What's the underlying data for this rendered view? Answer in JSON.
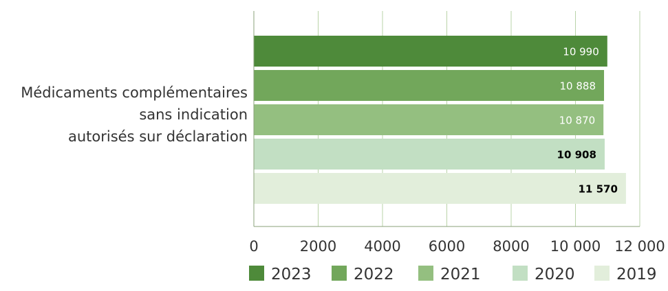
{
  "chart_data": {
    "type": "bar",
    "orientation": "horizontal",
    "categories": [
      "Médicaments complémentaires sans indication autorisés sur déclaration"
    ],
    "category_label_lines": [
      "Médicaments complémentaires",
      "sans indication",
      "autorisés sur déclaration"
    ],
    "series": [
      {
        "name": "2023",
        "values": [
          10990
        ],
        "value_label": "10 990",
        "color": "#4e8a3a",
        "label_color": "#ffffff",
        "label_bold": false
      },
      {
        "name": "2022",
        "values": [
          10888
        ],
        "value_label": "10 888",
        "color": "#72a75b",
        "label_color": "#ffffff",
        "label_bold": false
      },
      {
        "name": "2021",
        "values": [
          10870
        ],
        "value_label": "10 870",
        "color": "#94bf80",
        "label_color": "#ffffff",
        "label_bold": false
      },
      {
        "name": "2020",
        "values": [
          10908
        ],
        "value_label": "10 908",
        "color": "#c2dfc3",
        "label_color": "#000000",
        "label_bold": true
      },
      {
        "name": "2019",
        "values": [
          11570
        ],
        "value_label": "11 570",
        "color": "#e2eedb",
        "label_color": "#000000",
        "label_bold": true
      }
    ],
    "xlim": [
      0,
      12000
    ],
    "xticks": [
      0,
      2000,
      4000,
      6000,
      8000,
      10000,
      12000
    ],
    "xtick_labels": [
      "0",
      "2000",
      "4000",
      "6000",
      "8000",
      "10 000",
      "12 000"
    ],
    "grid": true,
    "grid_color": "#b9d3a8",
    "legend_position": "bottom-right"
  }
}
